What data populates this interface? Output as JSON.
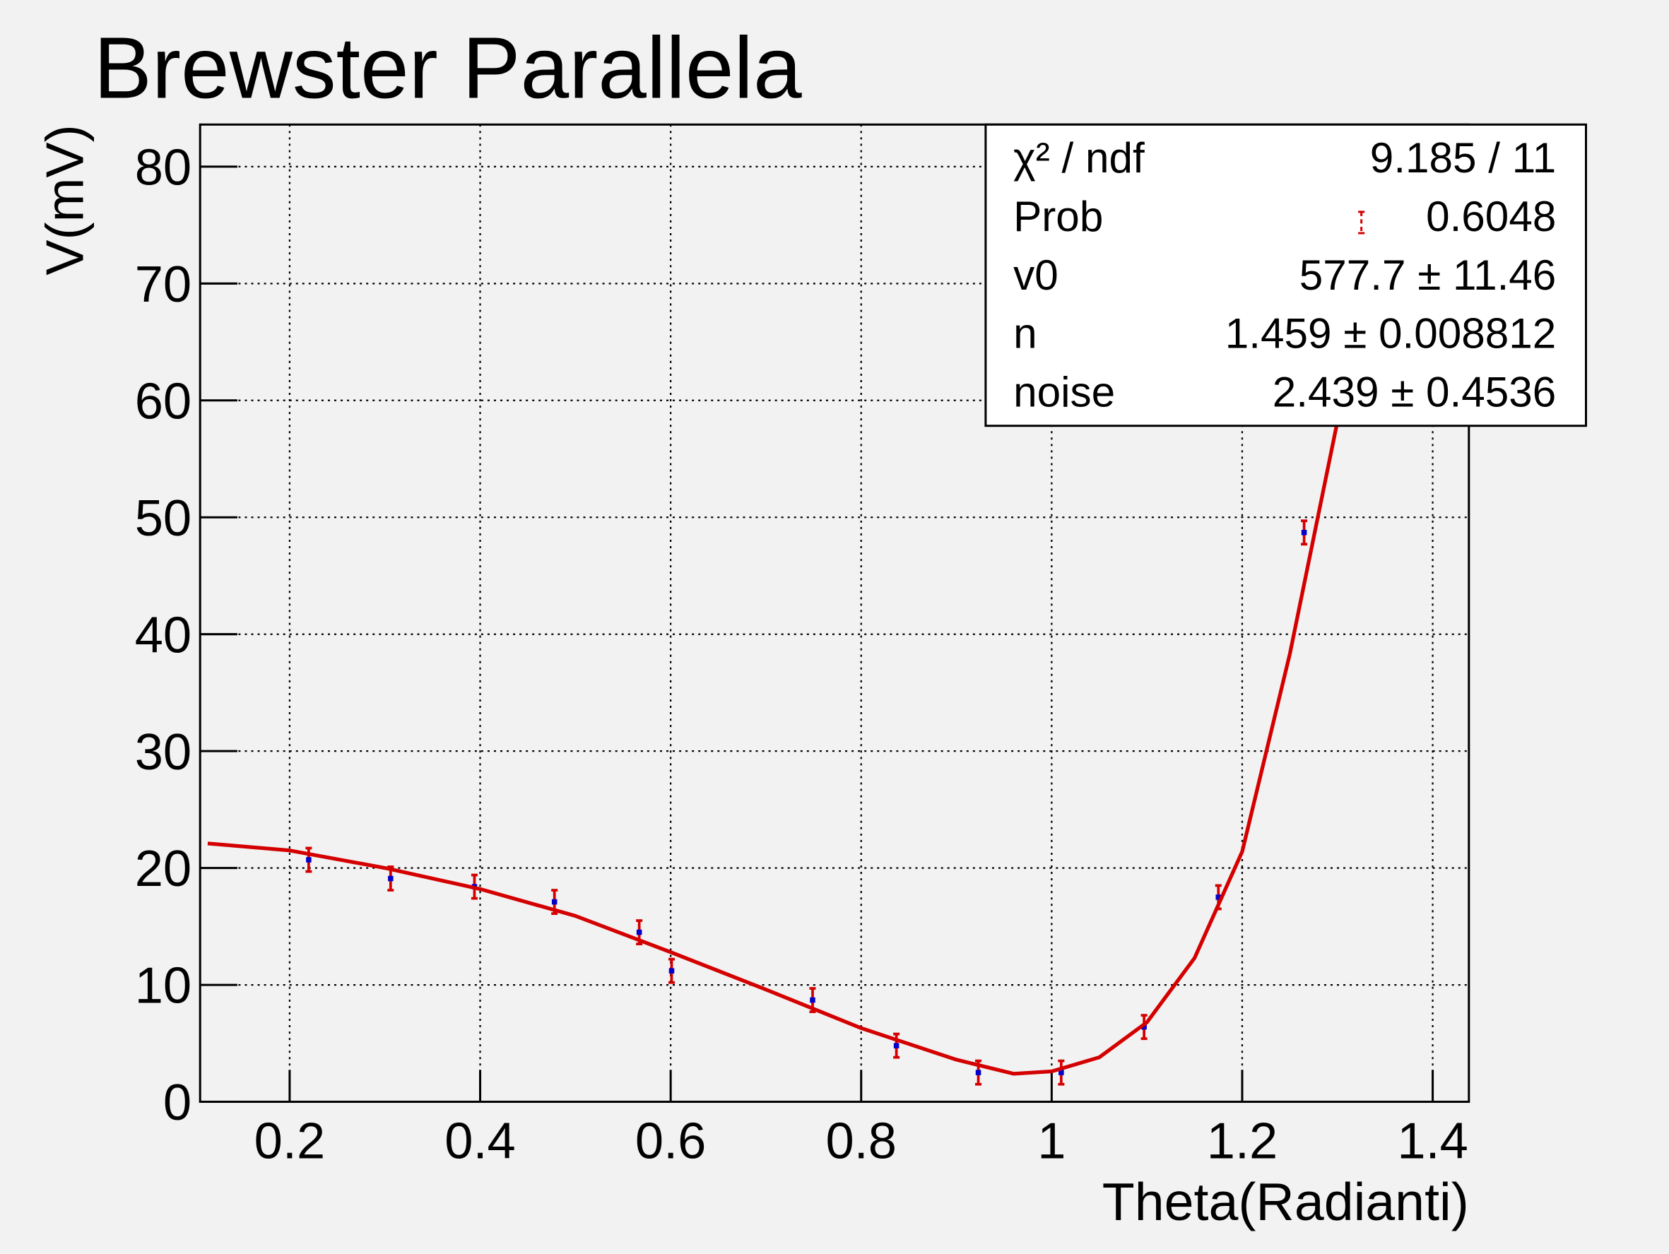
{
  "chart_data": {
    "type": "scatter",
    "title": "Brewster Parallela",
    "x_label": "Theta(Radianti)",
    "y_label": "V(mV)",
    "xlim": [
      0.106,
      1.438
    ],
    "ylim": [
      0,
      83.6
    ],
    "xticks": [
      0.2,
      0.4,
      0.6,
      0.8,
      1,
      1.2,
      1.4
    ],
    "yticks": [
      0,
      10,
      20,
      30,
      40,
      50,
      60,
      70,
      80
    ],
    "grid": true,
    "series": [
      {
        "type": "errorbar",
        "color": "#d40000",
        "marker_color": "#0000cc",
        "x": [
          0.22,
          0.306,
          0.394,
          0.478,
          0.567,
          0.601,
          0.749,
          0.837,
          0.923,
          1.01,
          1.097,
          1.175,
          1.265
        ],
        "values": [
          20.7,
          19.1,
          18.4,
          17.1,
          14.5,
          11.2,
          8.7,
          4.8,
          2.5,
          2.5,
          6.4,
          17.5,
          48.7
        ],
        "errors": [
          1,
          1,
          1,
          1,
          1,
          1,
          1,
          1,
          1,
          1,
          1,
          1,
          1
        ]
      },
      {
        "type": "line",
        "color": "#d40000",
        "x": [
          0.114,
          0.2,
          0.3,
          0.4,
          0.5,
          0.6,
          0.7,
          0.8,
          0.9,
          0.96,
          1.0,
          1.05,
          1.1,
          1.15,
          1.2,
          1.25,
          1.3
        ],
        "values": [
          22.1,
          21.5,
          20.0,
          18.2,
          15.9,
          12.8,
          9.6,
          6.3,
          3.6,
          2.4,
          2.6,
          3.8,
          6.8,
          12.3,
          21.4,
          38.3,
          58.2
        ]
      }
    ],
    "stats": {
      "rows": [
        {
          "label": "χ² / ndf",
          "value": "9.185 / 11"
        },
        {
          "label": "Prob",
          "value": "0.6048"
        },
        {
          "label": "v0",
          "value": "577.7 ± 11.46"
        },
        {
          "label": "n",
          "value": "1.459 ± 0.008812"
        },
        {
          "label": "noise",
          "value": "2.439 ± 0.4536"
        }
      ]
    }
  }
}
